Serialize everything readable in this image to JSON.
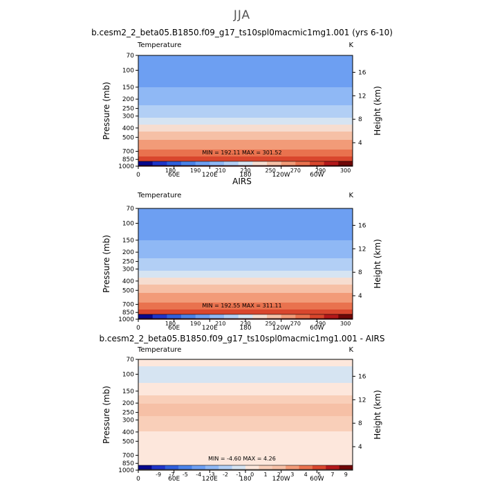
{
  "figure": {
    "title": "JJA"
  },
  "panels": [
    {
      "title": "b.cesm2_2_beta05.B1850.f09_g17_ts10spl0macmic1mg1.001 (yrs 6-10)",
      "left_label": "Temperature",
      "unit": "K",
      "stats": "MIN = 192.11   MAX = 301.52",
      "colorbar_labels": [
        "180",
        "190",
        "210",
        "230",
        "250",
        "270",
        "290",
        "300"
      ]
    },
    {
      "title": "AIRS",
      "left_label": "Temperature",
      "unit": "K",
      "stats": "MIN = 192.55   MAX = 311.11",
      "colorbar_labels": [
        "180",
        "190",
        "210",
        "230",
        "250",
        "270",
        "290",
        "300"
      ]
    },
    {
      "title": "b.cesm2_2_beta05.B1850.f09_g17_ts10spl0macmic1mg1.001 - AIRS",
      "left_label": "Temperature",
      "unit": "K",
      "stats": "MIN =   -4.60   MAX =    4.26",
      "colorbar_labels": [
        "-9",
        "-7",
        "-5",
        "-4",
        "-3",
        "-2",
        "-1",
        "0",
        "1",
        "2",
        "3",
        "4",
        "5",
        "7",
        "9"
      ]
    }
  ],
  "axes": {
    "ylabel_left": "Pressure (mb)",
    "ylabel_right": "Height (km)",
    "pressure_ticks": [
      "70",
      "100",
      "150",
      "200",
      "250",
      "300",
      "400",
      "500",
      "700",
      "850",
      "1000"
    ],
    "height_ticks": [
      "16",
      "12",
      "8",
      "4"
    ],
    "lon_ticks": [
      "0",
      "60E",
      "120E",
      "180",
      "120W",
      "60W"
    ]
  },
  "chart_data": [
    {
      "type": "heatmap",
      "title": "b.cesm2_2_beta05.B1850.f09_g17_ts10spl0macmic1mg1.001 (yrs 6-10)",
      "xlabel": "",
      "ylabel": "Pressure (mb)",
      "ylabel_right": "Height (km)",
      "x_ticks": [
        "0",
        "60E",
        "120E",
        "180",
        "120W",
        "60W"
      ],
      "y_ticks": [
        "70",
        "100",
        "150",
        "200",
        "250",
        "300",
        "400",
        "500",
        "700",
        "850",
        "1000"
      ],
      "y_scale": "log",
      "ylim": [
        1000,
        70
      ],
      "contour_levels": [
        180,
        190,
        200,
        210,
        220,
        230,
        240,
        250,
        260,
        270,
        280,
        290,
        300
      ],
      "min": 192.11,
      "max": 301.52,
      "profile_pressure": [
        70,
        100,
        150,
        200,
        250,
        300,
        400,
        500,
        700,
        850,
        1000
      ],
      "profile_value": [
        200,
        205,
        210,
        215,
        222,
        228,
        245,
        258,
        272,
        285,
        292
      ]
    },
    {
      "type": "heatmap",
      "title": "AIRS",
      "xlabel": "",
      "ylabel": "Pressure (mb)",
      "ylabel_right": "Height (km)",
      "x_ticks": [
        "0",
        "60E",
        "120E",
        "180",
        "120W",
        "60W"
      ],
      "y_ticks": [
        "70",
        "100",
        "150",
        "200",
        "250",
        "300",
        "400",
        "500",
        "700",
        "850",
        "1000"
      ],
      "y_scale": "log",
      "ylim": [
        1000,
        70
      ],
      "contour_levels": [
        180,
        190,
        200,
        210,
        220,
        230,
        240,
        250,
        260,
        270,
        280,
        290,
        300
      ],
      "min": 192.55,
      "max": 311.11,
      "profile_pressure": [
        70,
        100,
        150,
        200,
        250,
        300,
        400,
        500,
        700,
        850,
        1000
      ],
      "profile_value": [
        200,
        205,
        210,
        215,
        222,
        228,
        245,
        258,
        272,
        285,
        294
      ]
    },
    {
      "type": "heatmap",
      "title": "b.cesm2_2_beta05.B1850.f09_g17_ts10spl0macmic1mg1.001 - AIRS",
      "xlabel": "",
      "ylabel": "Pressure (mb)",
      "ylabel_right": "Height (km)",
      "x_ticks": [
        "0",
        "60E",
        "120E",
        "180",
        "120W",
        "60W"
      ],
      "y_ticks": [
        "70",
        "100",
        "150",
        "200",
        "250",
        "300",
        "400",
        "500",
        "700",
        "850",
        "1000"
      ],
      "y_scale": "log",
      "ylim": [
        1000,
        70
      ],
      "contour_levels": [
        -9,
        -7,
        -5,
        -4,
        -3,
        -2,
        -1,
        0,
        1,
        2,
        3,
        4,
        5,
        7,
        9
      ],
      "min": -4.6,
      "max": 4.26,
      "profile_pressure": [
        70,
        100,
        150,
        200,
        250,
        300,
        400,
        500,
        700,
        850,
        1000
      ],
      "profile_value": [
        0.5,
        -0.5,
        0.5,
        2,
        2.5,
        1.5,
        1,
        0.5,
        0.5,
        0.5,
        1
      ]
    }
  ],
  "colormaps": {
    "temperature": [
      "#08088c",
      "#1f35c9",
      "#2f5fdc",
      "#4a82e8",
      "#6d9ff2",
      "#8fb8f5",
      "#b2cff5",
      "#d6e4f2",
      "#f6ddd0",
      "#f6c0a6",
      "#f29b78",
      "#e9724e",
      "#d9462d",
      "#b3181a",
      "#700707"
    ],
    "difference": [
      "#08088c",
      "#1f35c9",
      "#2f5fdc",
      "#4a82e8",
      "#6d9ff2",
      "#8fb8f5",
      "#b2cff5",
      "#d6e4f2",
      "#fde7dc",
      "#f9cfb9",
      "#f6c0a6",
      "#f29b78",
      "#e9724e",
      "#d9462d",
      "#b3181a",
      "#700707"
    ]
  }
}
